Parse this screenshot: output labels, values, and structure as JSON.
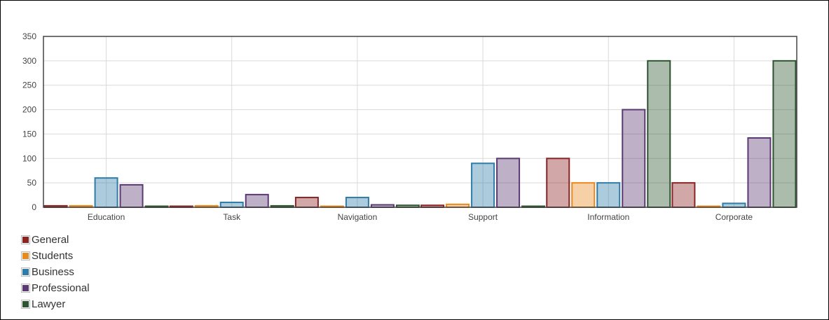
{
  "chart_data": {
    "type": "bar",
    "categories": [
      "Education",
      "Task",
      "Navigation",
      "Support",
      "Information",
      "Corporate"
    ],
    "series": [
      {
        "name": "General",
        "color": "#8b2323",
        "values": [
          3,
          1,
          20,
          4,
          100,
          50
        ]
      },
      {
        "name": "Students",
        "color": "#e98a20",
        "values": [
          3,
          3,
          2,
          6,
          50,
          1
        ]
      },
      {
        "name": "Business",
        "color": "#2f7ca8",
        "values": [
          60,
          10,
          20,
          90,
          50,
          8
        ]
      },
      {
        "name": "Professional",
        "color": "#5b3a73",
        "values": [
          46,
          26,
          5,
          100,
          200,
          142
        ]
      },
      {
        "name": "Lawyer",
        "color": "#2c5530",
        "values": [
          1,
          3,
          4,
          1,
          300,
          300
        ]
      }
    ],
    "ylim": [
      0,
      350
    ],
    "yticks": [
      0,
      50,
      100,
      150,
      200,
      250,
      300,
      350
    ],
    "grid": true,
    "legend_position": "bottom-left",
    "title": "",
    "xlabel": "",
    "ylabel": ""
  }
}
